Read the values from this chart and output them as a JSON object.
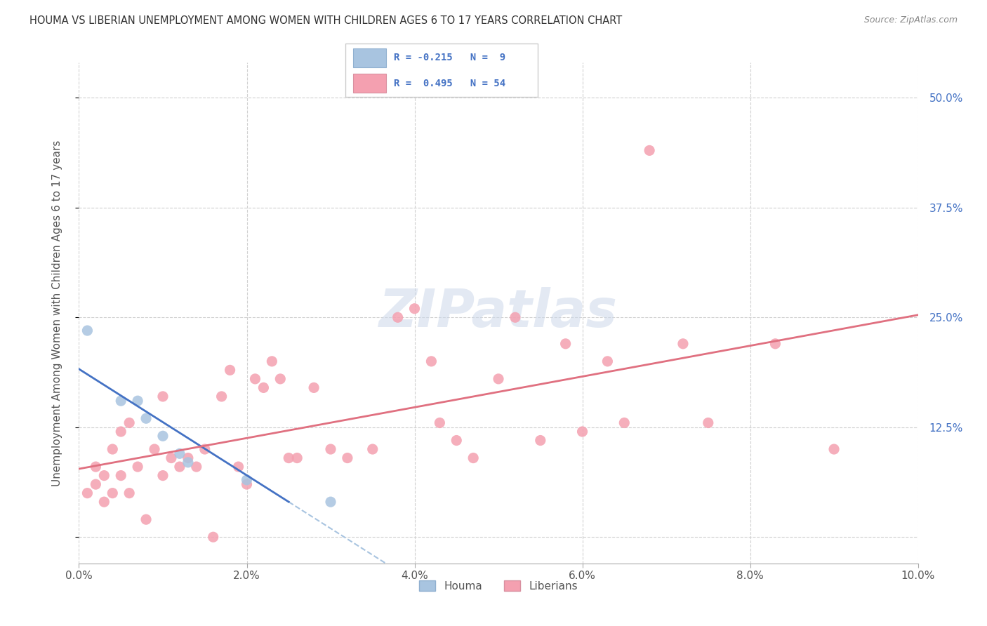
{
  "title": "HOUMA VS LIBERIAN UNEMPLOYMENT AMONG WOMEN WITH CHILDREN AGES 6 TO 17 YEARS CORRELATION CHART",
  "source": "Source: ZipAtlas.com",
  "ylabel": "Unemployment Among Women with Children Ages 6 to 17 years",
  "xlim": [
    0.0,
    0.1
  ],
  "ylim": [
    -0.03,
    0.54
  ],
  "xticks": [
    0.0,
    0.02,
    0.04,
    0.06,
    0.08,
    0.1
  ],
  "xtick_labels": [
    "0.0%",
    "2.0%",
    "4.0%",
    "6.0%",
    "8.0%",
    "10.0%"
  ],
  "yticks": [
    0.0,
    0.125,
    0.25,
    0.375,
    0.5
  ],
  "ytick_labels": [
    "",
    "12.5%",
    "25.0%",
    "37.5%",
    "50.0%"
  ],
  "houma_color": "#a8c4e0",
  "liberian_color": "#f4a0b0",
  "houma_line_color": "#4472c4",
  "liberian_line_color": "#e07080",
  "houma_dashed_color": "#a8c4e0",
  "background_color": "#ffffff",
  "grid_color": "#d0d0d0",
  "houma_x": [
    0.001,
    0.005,
    0.007,
    0.008,
    0.01,
    0.012,
    0.013,
    0.02,
    0.03
  ],
  "houma_y": [
    0.235,
    0.155,
    0.155,
    0.135,
    0.115,
    0.095,
    0.085,
    0.065,
    0.04
  ],
  "liberian_x": [
    0.001,
    0.002,
    0.002,
    0.003,
    0.003,
    0.004,
    0.004,
    0.005,
    0.005,
    0.006,
    0.006,
    0.007,
    0.008,
    0.009,
    0.01,
    0.01,
    0.011,
    0.012,
    0.013,
    0.014,
    0.015,
    0.016,
    0.017,
    0.018,
    0.019,
    0.02,
    0.021,
    0.022,
    0.023,
    0.024,
    0.025,
    0.026,
    0.028,
    0.03,
    0.032,
    0.035,
    0.038,
    0.04,
    0.042,
    0.043,
    0.045,
    0.047,
    0.05,
    0.052,
    0.055,
    0.058,
    0.06,
    0.063,
    0.065,
    0.068,
    0.072,
    0.075,
    0.083,
    0.09
  ],
  "liberian_y": [
    0.05,
    0.06,
    0.08,
    0.04,
    0.07,
    0.05,
    0.1,
    0.07,
    0.12,
    0.05,
    0.13,
    0.08,
    0.02,
    0.1,
    0.07,
    0.16,
    0.09,
    0.08,
    0.09,
    0.08,
    0.1,
    0.0,
    0.16,
    0.19,
    0.08,
    0.06,
    0.18,
    0.17,
    0.2,
    0.18,
    0.09,
    0.09,
    0.17,
    0.1,
    0.09,
    0.1,
    0.25,
    0.26,
    0.2,
    0.13,
    0.11,
    0.09,
    0.18,
    0.25,
    0.11,
    0.22,
    0.12,
    0.2,
    0.13,
    0.44,
    0.22,
    0.13,
    0.22,
    0.1
  ]
}
